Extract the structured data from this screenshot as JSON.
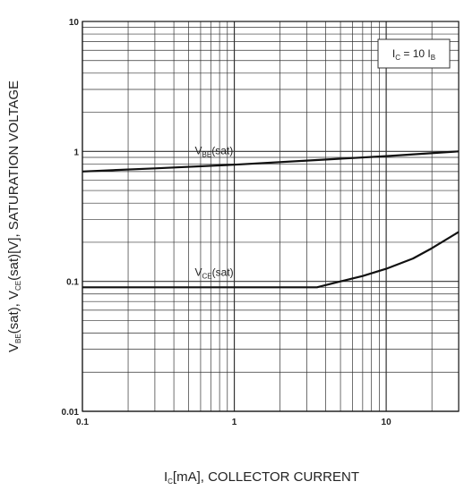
{
  "chart_data": {
    "type": "line",
    "x_scale": "log",
    "y_scale": "log",
    "xlim": [
      0.1,
      30
    ],
    "ylim": [
      0.01,
      10
    ],
    "grid": true,
    "x_ticks": [
      "0.1",
      "1",
      "10"
    ],
    "x_tick_values": [
      0.1,
      1,
      10
    ],
    "y_ticks": [
      "10",
      "1",
      "0.1",
      "0.01"
    ],
    "y_tick_values": [
      10,
      1,
      0.1,
      0.01
    ],
    "xlabel": "I C[mA], COLLECTOR CURRENT",
    "xlabel_parts": {
      "main": "I",
      "sub": "C",
      "rest": "[mA], COLLECTOR CURRENT"
    },
    "ylabel_parts": [
      {
        "text": "V",
        "sub": false
      },
      {
        "text": "BE",
        "sub": true
      },
      {
        "text": "(sat), V",
        "sub": false
      },
      {
        "text": "CE",
        "sub": true
      },
      {
        "text": "(sat)[V], SATURATION VOLTAGE",
        "sub": false
      }
    ],
    "annotation_parts": [
      {
        "text": "I",
        "sub": false
      },
      {
        "text": "C",
        "sub": true
      },
      {
        "text": " = 10 I",
        "sub": false
      },
      {
        "text": "B",
        "sub": true
      }
    ],
    "series": [
      {
        "name": "VBE(sat)",
        "label_parts": [
          {
            "text": "V",
            "sub": false
          },
          {
            "text": "BE",
            "sub": true
          },
          {
            "text": "(sat)",
            "sub": false
          }
        ],
        "x": [
          0.1,
          0.3,
          1,
          3,
          10,
          30
        ],
        "y": [
          0.7,
          0.74,
          0.79,
          0.85,
          0.92,
          1.0
        ]
      },
      {
        "name": "VCE(sat)",
        "label_parts": [
          {
            "text": "V",
            "sub": false
          },
          {
            "text": "CE",
            "sub": true
          },
          {
            "text": "(sat)",
            "sub": false
          }
        ],
        "x": [
          0.1,
          1,
          3.5,
          5,
          7,
          10,
          15,
          20,
          30
        ],
        "y": [
          0.09,
          0.09,
          0.09,
          0.1,
          0.11,
          0.125,
          0.15,
          0.18,
          0.24
        ]
      }
    ],
    "colors": {
      "line": "#111111",
      "grid": "#333333",
      "background": "#ffffff"
    }
  }
}
